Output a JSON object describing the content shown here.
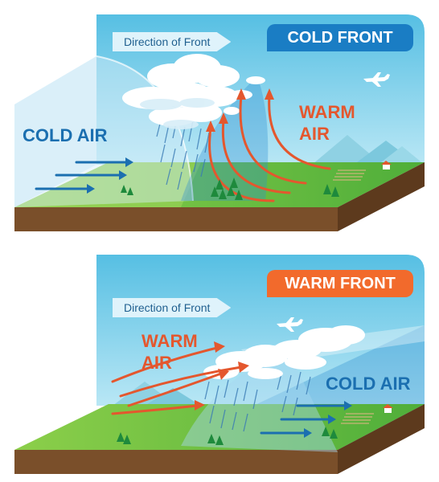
{
  "cold_front": {
    "badge": "COLD FRONT",
    "direction_label": "Direction of Front",
    "cold_air_label": "COLD AIR",
    "warm_air_line1": "WARM",
    "warm_air_line2": "AIR"
  },
  "warm_front": {
    "badge": "WARM FRONT",
    "direction_label": "Direction of Front",
    "cold_air_label": "COLD AIR",
    "warm_air_line1": "WARM",
    "warm_air_line2": "AIR"
  },
  "colors": {
    "cold_accent": "#1b6fb0",
    "warm_accent": "#e4572e",
    "cold_badge_bg": "#1a7dc4",
    "warm_badge_bg": "#f26a2c",
    "soil": "#7a4f2a",
    "grass": "#6cbf3d",
    "sky": "#5fc3e4"
  },
  "icons": [
    "airplane-icon",
    "cloud-icon",
    "rain-icon",
    "tree-icon",
    "mountain-icon",
    "house-icon",
    "arrow-icon"
  ]
}
